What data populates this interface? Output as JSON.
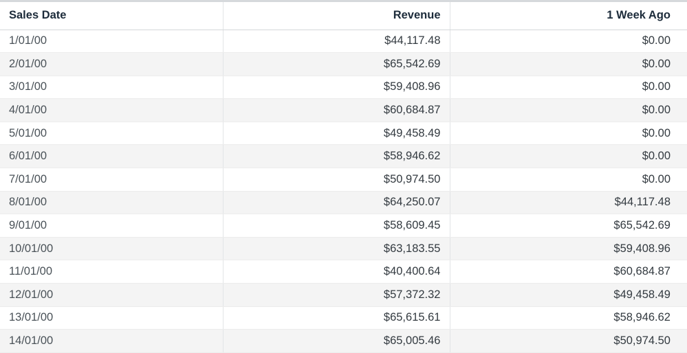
{
  "table": {
    "columns": [
      "Sales Date",
      "Revenue",
      "1 Week Ago"
    ],
    "rows": [
      [
        "1/01/00",
        "$44,117.48",
        "$0.00"
      ],
      [
        "2/01/00",
        "$65,542.69",
        "$0.00"
      ],
      [
        "3/01/00",
        "$59,408.96",
        "$0.00"
      ],
      [
        "4/01/00",
        "$60,684.87",
        "$0.00"
      ],
      [
        "5/01/00",
        "$49,458.49",
        "$0.00"
      ],
      [
        "6/01/00",
        "$58,946.62",
        "$0.00"
      ],
      [
        "7/01/00",
        "$50,974.50",
        "$0.00"
      ],
      [
        "8/01/00",
        "$64,250.07",
        "$44,117.48"
      ],
      [
        "9/01/00",
        "$58,609.45",
        "$65,542.69"
      ],
      [
        "10/01/00",
        "$63,183.55",
        "$59,408.96"
      ],
      [
        "11/01/00",
        "$40,400.64",
        "$60,684.87"
      ],
      [
        "12/01/00",
        "$57,372.32",
        "$49,458.49"
      ],
      [
        "13/01/00",
        "$65,615.61",
        "$58,946.62"
      ],
      [
        "14/01/00",
        "$65,005.46",
        "$50,974.50"
      ]
    ]
  }
}
